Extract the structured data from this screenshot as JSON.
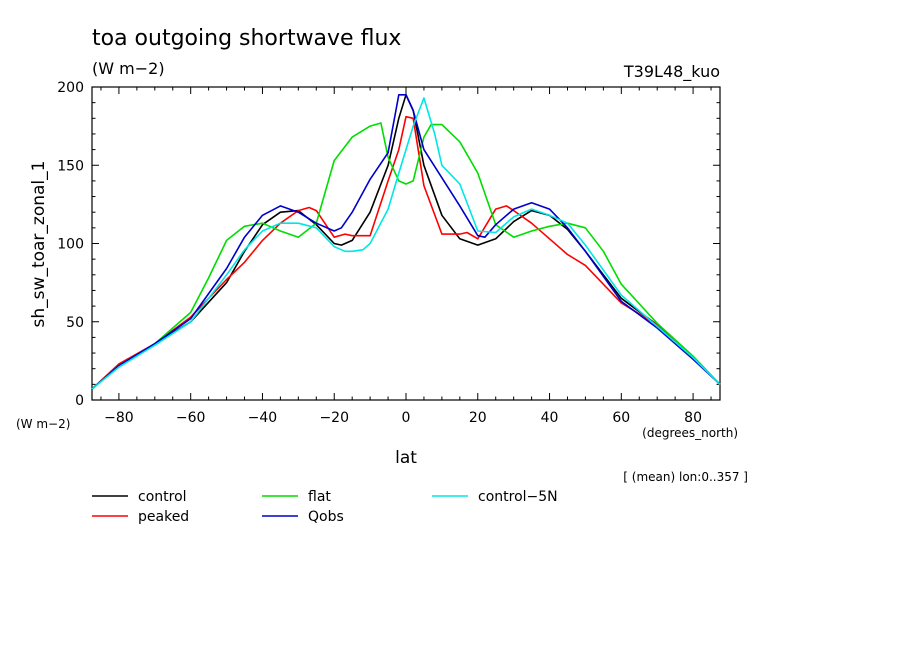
{
  "chart_data": {
    "type": "line",
    "title": "toa outgoing shortwave flux",
    "subtitle": "(W m−2)",
    "run_label": "T39L48_kuo",
    "ylabel": "sh_sw_toar_zonal_1",
    "y_units": "(W m−2)",
    "xlabel": "lat",
    "x_units": "(degrees_north)",
    "annotation": "[ (mean) lon:0..357 ]",
    "xlim": [
      -87.5,
      87.5
    ],
    "ylim": [
      0,
      200
    ],
    "x_ticks": [
      -80,
      -60,
      -40,
      -20,
      0,
      20,
      40,
      60,
      80
    ],
    "y_ticks": [
      0,
      50,
      100,
      150,
      200
    ],
    "x_tick_labels": [
      "−80",
      "−60",
      "−40",
      "−20",
      "0",
      "20",
      "40",
      "60",
      "80"
    ],
    "y_tick_labels": [
      "0",
      "50",
      "100",
      "150",
      "200"
    ],
    "grid": false,
    "legend_position": "bottom",
    "series": [
      {
        "name": "control",
        "color": "#000000",
        "x": [
          -87.5,
          -80,
          -70,
          -60,
          -50,
          -45,
          -40,
          -35,
          -30,
          -25,
          -20,
          -18,
          -15,
          -10,
          -5,
          -2,
          0,
          2,
          5,
          10,
          15,
          20,
          25,
          30,
          35,
          40,
          45,
          50,
          60,
          70,
          80,
          87.5
        ],
        "y": [
          7,
          22,
          36,
          50,
          75,
          95,
          112,
          120,
          121,
          112,
          100,
          99,
          102,
          120,
          150,
          180,
          195,
          185,
          150,
          118,
          103,
          99,
          103,
          114,
          121,
          118,
          109,
          95,
          65,
          48,
          27,
          10
        ]
      },
      {
        "name": "peaked",
        "color": "#ff0000",
        "x": [
          -87.5,
          -80,
          -70,
          -60,
          -50,
          -45,
          -40,
          -35,
          -30,
          -27,
          -25,
          -20,
          -17,
          -15,
          -10,
          -5,
          -2,
          0,
          2,
          5,
          10,
          15,
          17,
          20,
          25,
          28,
          30,
          35,
          40,
          45,
          50,
          60,
          70,
          80,
          87.5
        ],
        "y": [
          7,
          23,
          36,
          53,
          77,
          88,
          102,
          113,
          121,
          123,
          121,
          104,
          106,
          105,
          105,
          140,
          160,
          181,
          180,
          137,
          106,
          106,
          107,
          103,
          122,
          124,
          121,
          113,
          103,
          93,
          86,
          62,
          48,
          27,
          10
        ]
      },
      {
        "name": "flat",
        "color": "#00dd00",
        "x": [
          -87.5,
          -80,
          -70,
          -60,
          -55,
          -50,
          -45,
          -40,
          -35,
          -30,
          -25,
          -20,
          -15,
          -10,
          -7,
          -5,
          -2,
          0,
          2,
          5,
          7,
          10,
          15,
          20,
          25,
          30,
          35,
          40,
          45,
          50,
          55,
          60,
          70,
          80,
          87.5
        ],
        "y": [
          7,
          22,
          36,
          56,
          78,
          102,
          111,
          113,
          108,
          104,
          113,
          153,
          168,
          175,
          177,
          155,
          140,
          138,
          140,
          168,
          176,
          176,
          165,
          145,
          112,
          104,
          108,
          111,
          113,
          110,
          95,
          74,
          49,
          28,
          10
        ]
      },
      {
        "name": "Qobs",
        "color": "#0000cc",
        "x": [
          -87.5,
          -80,
          -70,
          -60,
          -50,
          -45,
          -40,
          -35,
          -30,
          -25,
          -20,
          -18,
          -15,
          -10,
          -5,
          -2,
          0,
          2,
          5,
          10,
          15,
          20,
          22,
          25,
          30,
          35,
          40,
          45,
          50,
          60,
          70,
          80,
          87.5
        ],
        "y": [
          7,
          22,
          36,
          52,
          84,
          104,
          118,
          124,
          120,
          113,
          108,
          110,
          120,
          141,
          158,
          195,
          195,
          185,
          160,
          142,
          124,
          105,
          104,
          112,
          122,
          126,
          122,
          110,
          95,
          63,
          46,
          26,
          10
        ]
      },
      {
        "name": "control−5N",
        "color": "#00e6e6",
        "x": [
          -87.5,
          -80,
          -70,
          -60,
          -50,
          -45,
          -40,
          -35,
          -30,
          -25,
          -20,
          -17,
          -15,
          -12,
          -10,
          -5,
          -2,
          0,
          2,
          5,
          8,
          10,
          15,
          20,
          25,
          30,
          35,
          40,
          45,
          50,
          60,
          70,
          80,
          87.5
        ],
        "y": [
          7,
          21,
          35,
          50,
          80,
          96,
          108,
          113,
          113,
          110,
          98,
          95,
          95,
          96,
          100,
          122,
          145,
          160,
          175,
          193,
          170,
          150,
          138,
          108,
          107,
          117,
          122,
          118,
          113,
          99,
          67,
          47,
          27,
          10
        ]
      }
    ]
  }
}
